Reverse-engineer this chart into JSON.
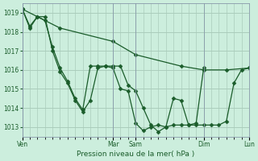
{
  "bg_color": "#cceedd",
  "grid_color": "#aaccbb",
  "line_color": "#1a5c2a",
  "marker_color": "#1a5c2a",
  "title": "Pression niveau de la mer( hPa )",
  "ylim": [
    1012.5,
    1019.5
  ],
  "yticks": [
    1013,
    1014,
    1015,
    1016,
    1017,
    1018,
    1019
  ],
  "xlim": [
    0,
    240
  ],
  "day_positions": [
    0,
    96,
    120,
    192,
    240
  ],
  "day_labels": [
    "Ven",
    "Mar",
    "Sam",
    "Dim",
    "Lun"
  ],
  "series1_x": [
    0,
    8,
    16,
    24,
    32,
    40,
    48,
    56,
    64,
    72,
    80,
    88,
    96,
    104,
    112,
    120,
    128,
    136,
    144,
    152,
    160,
    168,
    176,
    184,
    192
  ],
  "series1_y": [
    1019.2,
    1018.2,
    1018.8,
    1018.8,
    1017.0,
    1015.9,
    1015.3,
    1014.4,
    1013.8,
    1014.4,
    1016.1,
    1016.2,
    1016.1,
    1015.0,
    1014.9,
    1013.2,
    1012.8,
    1013.0,
    1013.1,
    1013.0,
    1013.1,
    1013.1,
    1013.1,
    1013.2,
    1016.1
  ],
  "series2_x": [
    0,
    40,
    96,
    120,
    168,
    192,
    216,
    240
  ],
  "series2_y": [
    1019.2,
    1018.2,
    1017.5,
    1016.8,
    1016.2,
    1016.0,
    1016.0,
    1016.1
  ],
  "series3_x": [
    0,
    8,
    16,
    24,
    32,
    40,
    48,
    56,
    64,
    72,
    80,
    88,
    96,
    104,
    112,
    120,
    128,
    136,
    144,
    152,
    160,
    168,
    176,
    184,
    192,
    200,
    208,
    216,
    224,
    232,
    240
  ],
  "series3_y": [
    1019.2,
    1018.3,
    1018.8,
    1018.6,
    1017.2,
    1016.1,
    1015.4,
    1014.5,
    1013.9,
    1016.2,
    1016.2,
    1016.2,
    1016.2,
    1016.2,
    1015.2,
    1014.9,
    1014.0,
    1013.1,
    1012.75,
    1013.0,
    1014.5,
    1014.4,
    1013.1,
    1013.1,
    1013.1,
    1013.1,
    1013.1,
    1013.3,
    1015.3,
    1016.0,
    1016.1
  ]
}
